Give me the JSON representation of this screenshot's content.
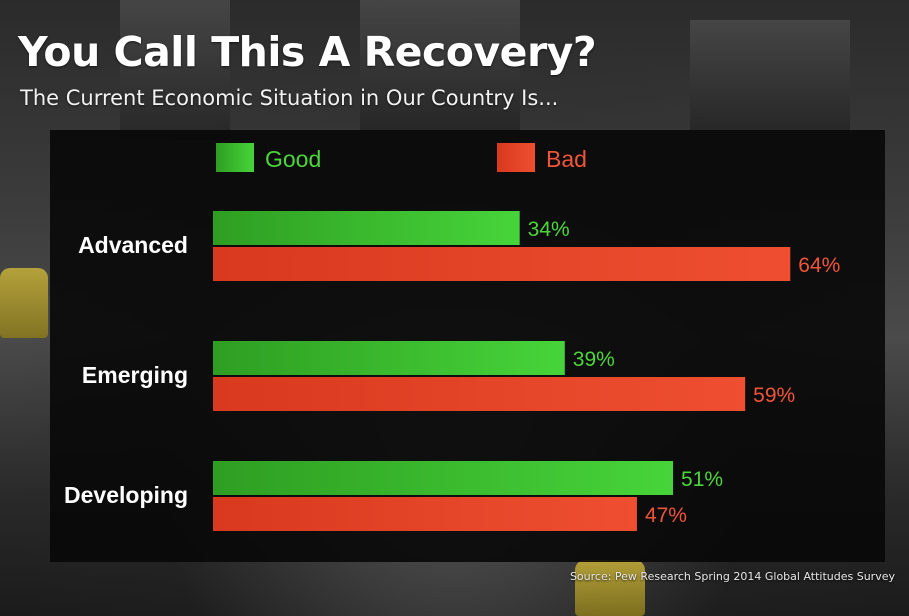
{
  "header": {
    "title": "You Call This A Recovery?",
    "subtitle": "The Current Economic Situation in Our Country Is..."
  },
  "footer": {
    "source": "Source: Pew Research Spring 2014 Global Attitudes Survey"
  },
  "colors": {
    "good": "#3fc42f",
    "bad": "#e8472a",
    "good_text": "#4cd63a",
    "bad_text": "#f0553a"
  },
  "chart_data": {
    "type": "bar",
    "orientation": "horizontal",
    "title": "You Call This A Recovery?",
    "subtitle": "The Current Economic Situation in Our Country Is...",
    "categories": [
      "Advanced",
      "Emerging",
      "Developing"
    ],
    "series": [
      {
        "name": "Good",
        "values": [
          34,
          39,
          51
        ],
        "labels": [
          "34%",
          "39%",
          "51%"
        ]
      },
      {
        "name": "Bad",
        "values": [
          64,
          59,
          47
        ],
        "labels": [
          "64%",
          "59%",
          "47%"
        ]
      }
    ],
    "xlim": [
      0,
      100
    ],
    "grid": false,
    "legend": "top"
  }
}
